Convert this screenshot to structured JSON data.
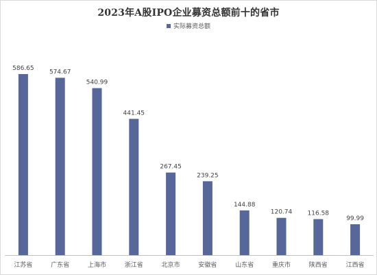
{
  "chart_data": {
    "type": "bar",
    "title": "2023年A股IPO企业募资总额前十的省市",
    "categories": [
      "江苏省",
      "广东省",
      "上海市",
      "浙江省",
      "北京市",
      "安徽省",
      "山东省",
      "重庆市",
      "陕西省",
      "江西省"
    ],
    "series": [
      {
        "name": "实际募资总额",
        "values": [
          586.65,
          574.67,
          540.99,
          441.45,
          267.45,
          239.25,
          144.88,
          120.74,
          116.58,
          99.99
        ],
        "labels": [
          "586.65",
          "574.67",
          "540.99",
          "441.45",
          "267.45",
          "239.25",
          "144.88",
          "120.74",
          "116.58",
          "99.99"
        ]
      }
    ],
    "legend_position": "top",
    "grid": false,
    "ylim": [
      0,
      600
    ]
  },
  "colors": {
    "bar": "#57679a",
    "axis": "#bfbfbf"
  }
}
